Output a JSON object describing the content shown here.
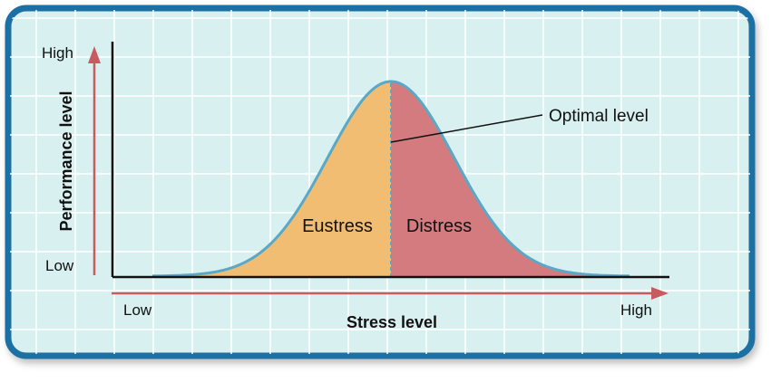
{
  "diagram": {
    "y_axis": {
      "title": "Performance level",
      "high_label": "High",
      "low_label": "Low"
    },
    "x_axis": {
      "title": "Stress level",
      "low_label": "Low",
      "high_label": "High"
    },
    "regions": [
      {
        "label": "Eustress",
        "color": "#f0bd73"
      },
      {
        "label": "Distress",
        "color": "#d37b7f"
      }
    ],
    "callout": {
      "label": "Optimal level"
    },
    "colors": {
      "frame_border": "#1f6fa3",
      "background": "#d9f0f0",
      "grid": "#ffffff",
      "arrow": "#c95a5f",
      "curve": "#5aa8c8",
      "axis": "#111111"
    }
  }
}
